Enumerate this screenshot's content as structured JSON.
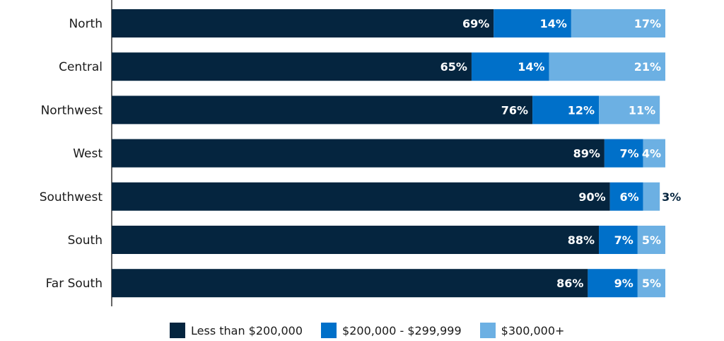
{
  "chart_data": {
    "type": "bar",
    "orientation": "horizontal",
    "stacked": true,
    "categories": [
      "North",
      "Central",
      "Northwest",
      "West",
      "Southwest",
      "South",
      "Far South"
    ],
    "series": [
      {
        "name": "Less than $200,000",
        "color": "#05253f",
        "values": [
          69,
          65,
          76,
          89,
          90,
          88,
          86
        ],
        "labels": [
          "69%",
          "65%",
          "76%",
          "89%",
          "90%",
          "88%",
          "86%"
        ]
      },
      {
        "name": "$200,000 - $299,999",
        "color": "#0070c9",
        "values": [
          14,
          14,
          12,
          7,
          6,
          7,
          9
        ],
        "labels": [
          "14%",
          "14%",
          "12%",
          "7%",
          "6%",
          "7%",
          "9%"
        ]
      },
      {
        "name": "$300,000+",
        "color": "#6cb0e3",
        "values": [
          17,
          21,
          11,
          4,
          3,
          5,
          5
        ],
        "labels": [
          "17%",
          "21%",
          "11%",
          "4%",
          "3%",
          "5%",
          "5%"
        ]
      }
    ],
    "xlim": [
      0,
      100
    ],
    "grid": false,
    "legend_position": "bottom"
  }
}
